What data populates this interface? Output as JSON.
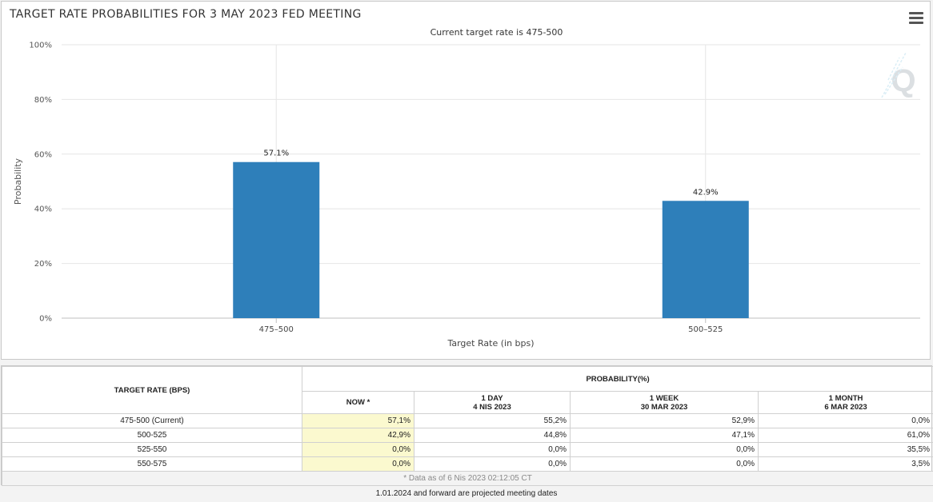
{
  "chart": {
    "title": "TARGET RATE PROBABILITIES FOR 3 MAY 2023 FED MEETING",
    "subtitle": "Current target rate is 475-500",
    "menu_icon": "hamburger-menu-icon",
    "watermark_icon": "quikstrike-q-logo-icon",
    "bar_color": "#2e7fba"
  },
  "chart_data": {
    "type": "bar",
    "title": "TARGET RATE PROBABILITIES FOR 3 MAY 2023 FED MEETING",
    "subtitle": "Current target rate is 475-500",
    "xlabel": "Target Rate (in bps)",
    "ylabel": "Probability",
    "categories": [
      "475–500",
      "500–525"
    ],
    "values": [
      57.1,
      42.9
    ],
    "data_labels": [
      "57.1%",
      "42.9%"
    ],
    "ylim": [
      0,
      100
    ],
    "yticks": [
      "0%",
      "20%",
      "40%",
      "60%",
      "80%",
      "100%"
    ],
    "ytick_values": [
      0,
      20,
      40,
      60,
      80,
      100
    ],
    "grid": true,
    "legend": "none"
  },
  "table": {
    "header_rate": "TARGET RATE (BPS)",
    "header_prob": "PROBABILITY(%)",
    "columns": [
      {
        "line1": "NOW *",
        "line2": ""
      },
      {
        "line1": "1 DAY",
        "line2": "4 NIS 2023"
      },
      {
        "line1": "1 WEEK",
        "line2": "30 MAR 2023"
      },
      {
        "line1": "1 MONTH",
        "line2": "6 MAR 2023"
      }
    ],
    "rows": [
      {
        "rate": "475-500 (Current)",
        "values": [
          "57,1%",
          "55,2%",
          "52,9%",
          "0,0%"
        ]
      },
      {
        "rate": "500-525",
        "values": [
          "42,9%",
          "44,8%",
          "47,1%",
          "61,0%"
        ]
      },
      {
        "rate": "525-550",
        "values": [
          "0,0%",
          "0,0%",
          "0,0%",
          "35,5%"
        ]
      },
      {
        "rate": "550-575",
        "values": [
          "0,0%",
          "0,0%",
          "0,0%",
          "3,5%"
        ]
      }
    ],
    "footnote": "* Data as of 6 Nis 2023 02:12:05 CT"
  },
  "bottom_note": "1.01.2024 and forward are projected meeting dates"
}
